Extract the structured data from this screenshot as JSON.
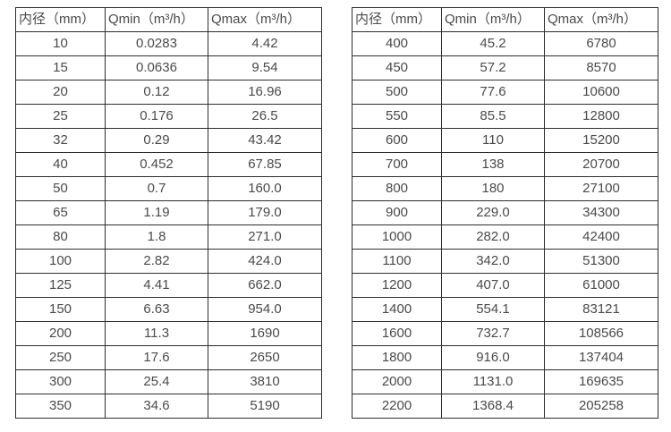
{
  "meta": {
    "background_color": "#ffffff",
    "border_color": "#2d2d2d",
    "text_color": "#4a4a4a"
  },
  "tables": [
    {
      "name": "diameter-flow-table-small",
      "headers": [
        "内径（mm）",
        "Qmin（m³/h）",
        "Qmax（m³/h）"
      ],
      "rows": [
        [
          "10",
          "0.0283",
          "4.42"
        ],
        [
          "15",
          "0.0636",
          "9.54"
        ],
        [
          "20",
          "0.12",
          "16.96"
        ],
        [
          "25",
          "0.176",
          "26.5"
        ],
        [
          "32",
          "0.29",
          "43.42"
        ],
        [
          "40",
          "0.452",
          "67.85"
        ],
        [
          "50",
          "0.7",
          "160.0"
        ],
        [
          "65",
          "1.19",
          "179.0"
        ],
        [
          "80",
          "1.8",
          "271.0"
        ],
        [
          "100",
          "2.82",
          "424.0"
        ],
        [
          "125",
          "4.41",
          "662.0"
        ],
        [
          "150",
          "6.63",
          "954.0"
        ],
        [
          "200",
          "11.3",
          "1690"
        ],
        [
          "250",
          "17.6",
          "2650"
        ],
        [
          "300",
          "25.4",
          "3810"
        ],
        [
          "350",
          "34.6",
          "5190"
        ]
      ]
    },
    {
      "name": "diameter-flow-table-large",
      "headers": [
        "内径（mm）",
        "Qmin（m³/h）",
        "Qmax（m³/h）"
      ],
      "rows": [
        [
          "400",
          "45.2",
          "6780"
        ],
        [
          "450",
          "57.2",
          "8570"
        ],
        [
          "500",
          "77.6",
          "10600"
        ],
        [
          "550",
          "85.5",
          "12800"
        ],
        [
          "600",
          "110",
          "15200"
        ],
        [
          "700",
          "138",
          "20700"
        ],
        [
          "800",
          "180",
          "27100"
        ],
        [
          "900",
          "229.0",
          "34300"
        ],
        [
          "1000",
          "282.0",
          "42400"
        ],
        [
          "1100",
          "342.0",
          "51300"
        ],
        [
          "1200",
          "407.0",
          "61000"
        ],
        [
          "1400",
          "554.1",
          "83121"
        ],
        [
          "1600",
          "732.7",
          "108566"
        ],
        [
          "1800",
          "916.0",
          "137404"
        ],
        [
          "2000",
          "1131.0",
          "169635"
        ],
        [
          "2200",
          "1368.4",
          "205258"
        ]
      ]
    }
  ]
}
